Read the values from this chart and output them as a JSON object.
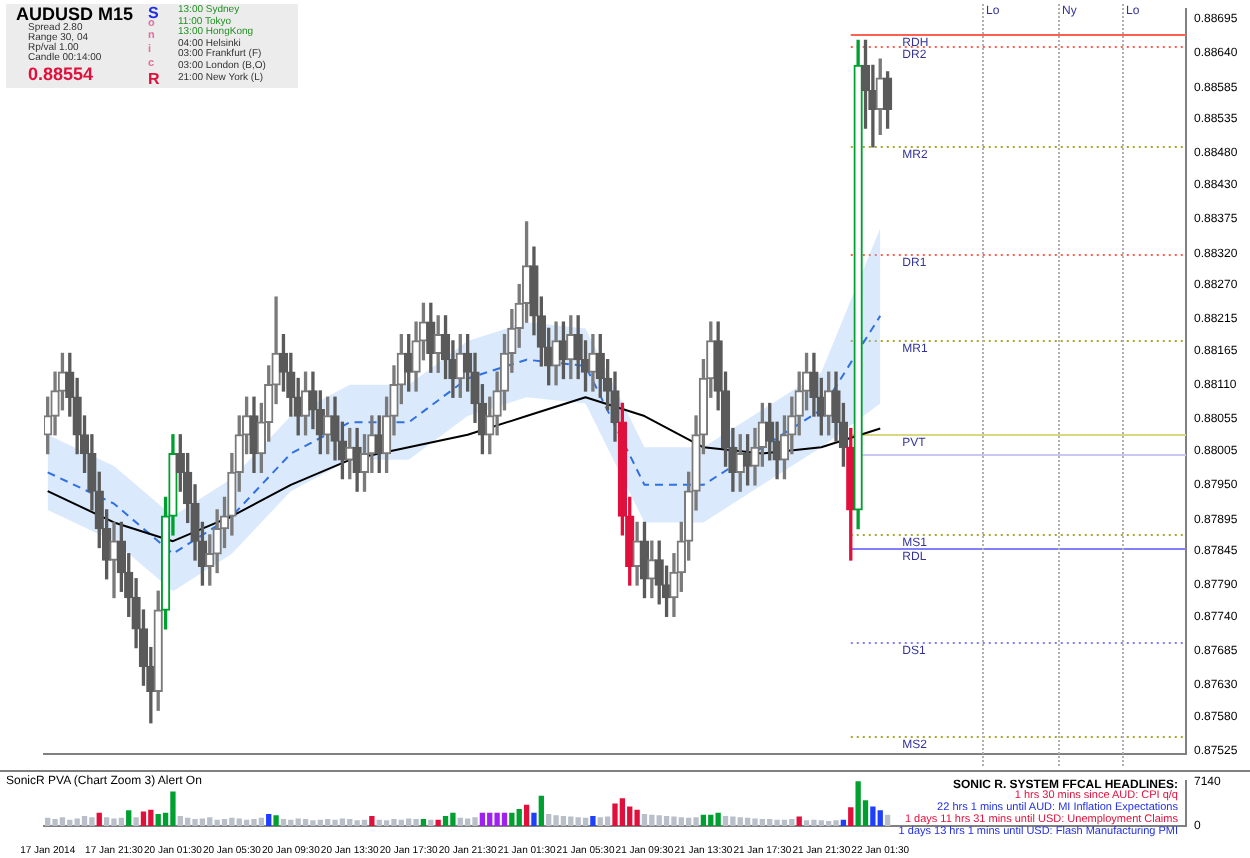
{
  "chart_data": [
    {
      "type": "candlestick",
      "title": "AUDUSD  M15",
      "categories": [
        "17 Jan 2014",
        null,
        null,
        null,
        null,
        null,
        null,
        null,
        null,
        "17 Jan 21:30",
        null,
        null,
        null,
        null,
        null,
        null,
        null,
        "20 Jan 01:30",
        null,
        null,
        null,
        null,
        null,
        null,
        null,
        "20 Jan 05:30",
        null,
        null,
        null,
        null,
        null,
        null,
        null,
        "20 Jan 09:30",
        null,
        null,
        null,
        null,
        null,
        null,
        null,
        "20 Jan 13:30",
        null,
        null,
        null,
        null,
        null,
        null,
        null,
        "20 Jan 17:30",
        null,
        null,
        null,
        null,
        null,
        null,
        null,
        "20 Jan 21:30",
        null,
        null,
        null,
        null,
        null,
        null,
        null,
        "21 Jan 01:30",
        null,
        null,
        null,
        null,
        null,
        null,
        null,
        "21 Jan 05:30",
        null,
        null,
        null,
        null,
        null,
        null,
        null,
        "21 Jan 09:30",
        null,
        null,
        null,
        null,
        null,
        null,
        null,
        "21 Jan 13:30",
        null,
        null,
        null,
        null,
        null,
        null,
        null,
        "21 Jan 17:30",
        null,
        null,
        null,
        null,
        null,
        null,
        null,
        "21 Jan 21:30",
        null,
        null,
        null,
        null,
        null,
        null,
        null,
        "22 Jan 01:30",
        null,
        null,
        null,
        null,
        null,
        null,
        null,
        null,
        null,
        null,
        null,
        null,
        null,
        null,
        null,
        null,
        null,
        null,
        null,
        null,
        null,
        null,
        null,
        null,
        null,
        null,
        null,
        null,
        null,
        null,
        null,
        null,
        null,
        null,
        null,
        null,
        null,
        null,
        null,
        null,
        null
      ],
      "ohlc": [
        [
          0.8803,
          0.8809,
          0.88,
          0.8806
        ],
        [
          0.8806,
          0.8813,
          0.8803,
          0.881
        ],
        [
          0.881,
          0.8816,
          0.8807,
          0.8813
        ],
        [
          0.8813,
          0.8816,
          0.8806,
          0.8809
        ],
        [
          0.8809,
          0.8812,
          0.88,
          0.8803
        ],
        [
          0.8803,
          0.8806,
          0.8797,
          0.88
        ],
        [
          0.88,
          0.8803,
          0.8791,
          0.8794
        ],
        [
          0.8794,
          0.8797,
          0.8785,
          0.8788
        ],
        [
          0.8788,
          0.8791,
          0.878,
          0.8783
        ],
        [
          0.8783,
          0.8789,
          0.8777,
          0.8786
        ],
        [
          0.8786,
          0.8789,
          0.8778,
          0.8781
        ],
        [
          0.8781,
          0.8784,
          0.8774,
          0.8777
        ],
        [
          0.8777,
          0.878,
          0.8769,
          0.8772
        ],
        [
          0.8772,
          0.8775,
          0.8763,
          0.8766
        ],
        [
          0.8766,
          0.8769,
          0.8757,
          0.8762
        ],
        [
          0.8762,
          0.8778,
          0.8759,
          0.8775
        ],
        [
          0.8775,
          0.8793,
          0.8772,
          0.879
        ],
        [
          0.879,
          0.8803,
          0.8787,
          0.88
        ],
        [
          0.88,
          0.8803,
          0.8794,
          0.8797
        ],
        [
          0.8797,
          0.88,
          0.8789,
          0.8792
        ],
        [
          0.8792,
          0.8795,
          0.8783,
          0.8786
        ],
        [
          0.8786,
          0.8789,
          0.8779,
          0.8782
        ],
        [
          0.8782,
          0.8787,
          0.8779,
          0.8784
        ],
        [
          0.8784,
          0.8791,
          0.8781,
          0.8788
        ],
        [
          0.8788,
          0.8793,
          0.8785,
          0.879
        ],
        [
          0.879,
          0.88,
          0.8787,
          0.8797
        ],
        [
          0.8797,
          0.8806,
          0.8794,
          0.8803
        ],
        [
          0.8803,
          0.8809,
          0.88,
          0.8806
        ],
        [
          0.8806,
          0.8809,
          0.8797,
          0.88
        ],
        [
          0.88,
          0.8808,
          0.8797,
          0.8805
        ],
        [
          0.8805,
          0.8814,
          0.8802,
          0.8811
        ],
        [
          0.8811,
          0.8825,
          0.8808,
          0.8816
        ],
        [
          0.8816,
          0.8819,
          0.881,
          0.8813
        ],
        [
          0.8813,
          0.8816,
          0.8806,
          0.8809
        ],
        [
          0.8809,
          0.8812,
          0.8803,
          0.8806
        ],
        [
          0.8806,
          0.8813,
          0.8803,
          0.881
        ],
        [
          0.881,
          0.8813,
          0.8804,
          0.8807
        ],
        [
          0.8807,
          0.881,
          0.88,
          0.8803
        ],
        [
          0.8803,
          0.8809,
          0.88,
          0.8806
        ],
        [
          0.8806,
          0.8809,
          0.8799,
          0.8802
        ],
        [
          0.8802,
          0.8805,
          0.8796,
          0.8799
        ],
        [
          0.8799,
          0.8804,
          0.8796,
          0.8801
        ],
        [
          0.8801,
          0.8804,
          0.8794,
          0.8797
        ],
        [
          0.8797,
          0.8803,
          0.8794,
          0.88
        ],
        [
          0.88,
          0.8806,
          0.8797,
          0.8803
        ],
        [
          0.8803,
          0.8806,
          0.8797,
          0.88
        ],
        [
          0.88,
          0.8809,
          0.8797,
          0.8806
        ],
        [
          0.8806,
          0.8814,
          0.8803,
          0.8811
        ],
        [
          0.8811,
          0.8819,
          0.8808,
          0.8816
        ],
        [
          0.8816,
          0.8819,
          0.881,
          0.8813
        ],
        [
          0.8813,
          0.8821,
          0.881,
          0.8818
        ],
        [
          0.8818,
          0.8824,
          0.8815,
          0.8821
        ],
        [
          0.8821,
          0.8824,
          0.8813,
          0.8816
        ],
        [
          0.8816,
          0.8822,
          0.8813,
          0.8819
        ],
        [
          0.8819,
          0.8822,
          0.8812,
          0.8815
        ],
        [
          0.8815,
          0.8818,
          0.8809,
          0.8812
        ],
        [
          0.8812,
          0.8819,
          0.8809,
          0.8816
        ],
        [
          0.8816,
          0.8819,
          0.881,
          0.8813
        ],
        [
          0.8813,
          0.8816,
          0.8805,
          0.8808
        ],
        [
          0.8808,
          0.8811,
          0.88,
          0.8803
        ],
        [
          0.8803,
          0.8809,
          0.88,
          0.8806
        ],
        [
          0.8806,
          0.8813,
          0.8803,
          0.881
        ],
        [
          0.881,
          0.8819,
          0.8807,
          0.8816
        ],
        [
          0.8816,
          0.8823,
          0.8813,
          0.882
        ],
        [
          0.882,
          0.8827,
          0.8817,
          0.8824
        ],
        [
          0.8824,
          0.8837,
          0.8821,
          0.883
        ],
        [
          0.883,
          0.8833,
          0.8819,
          0.8822
        ],
        [
          0.8822,
          0.8825,
          0.8814,
          0.8817
        ],
        [
          0.8817,
          0.882,
          0.8811,
          0.8814
        ],
        [
          0.8814,
          0.8821,
          0.8811,
          0.8818
        ],
        [
          0.8818,
          0.8821,
          0.8812,
          0.8815
        ],
        [
          0.8815,
          0.8822,
          0.8812,
          0.8819
        ],
        [
          0.8819,
          0.8822,
          0.8812,
          0.8815
        ],
        [
          0.8815,
          0.8818,
          0.881,
          0.8813
        ],
        [
          0.8813,
          0.8819,
          0.881,
          0.8816
        ],
        [
          0.8816,
          0.8819,
          0.8809,
          0.8812
        ],
        [
          0.8812,
          0.8815,
          0.8807,
          0.881
        ],
        [
          0.881,
          0.8813,
          0.8802,
          0.8805
        ],
        [
          0.8805,
          0.8808,
          0.8787,
          0.879
        ],
        [
          0.879,
          0.8793,
          0.8779,
          0.8782
        ],
        [
          0.8782,
          0.8789,
          0.8779,
          0.8786
        ],
        [
          0.8786,
          0.8789,
          0.8777,
          0.878
        ],
        [
          0.878,
          0.8786,
          0.8777,
          0.8783
        ],
        [
          0.8783,
          0.8786,
          0.8776,
          0.8779
        ],
        [
          0.8779,
          0.8782,
          0.8774,
          0.8777
        ],
        [
          0.8777,
          0.8784,
          0.8774,
          0.8781
        ],
        [
          0.8781,
          0.8789,
          0.8778,
          0.8786
        ],
        [
          0.8786,
          0.8797,
          0.8783,
          0.8794
        ],
        [
          0.8794,
          0.8806,
          0.8791,
          0.8803
        ],
        [
          0.8803,
          0.8815,
          0.88,
          0.8812
        ],
        [
          0.8812,
          0.8821,
          0.8809,
          0.8818
        ],
        [
          0.8818,
          0.8821,
          0.8807,
          0.881
        ],
        [
          0.881,
          0.8813,
          0.8798,
          0.8801
        ],
        [
          0.8801,
          0.8804,
          0.8794,
          0.8797
        ],
        [
          0.8797,
          0.8803,
          0.8794,
          0.88
        ],
        [
          0.88,
          0.8803,
          0.8795,
          0.8798
        ],
        [
          0.8798,
          0.8804,
          0.8795,
          0.8801
        ],
        [
          0.8801,
          0.8808,
          0.8798,
          0.8805
        ],
        [
          0.8805,
          0.8808,
          0.8799,
          0.8802
        ],
        [
          0.8802,
          0.8805,
          0.8796,
          0.8799
        ],
        [
          0.8799,
          0.8806,
          0.8796,
          0.8803
        ],
        [
          0.8803,
          0.8809,
          0.88,
          0.8806
        ],
        [
          0.8806,
          0.8813,
          0.8803,
          0.881
        ],
        [
          0.881,
          0.8816,
          0.8807,
          0.8813
        ],
        [
          0.8813,
          0.8816,
          0.8806,
          0.8809
        ],
        [
          0.8809,
          0.8812,
          0.8803,
          0.8806
        ],
        [
          0.8806,
          0.8813,
          0.8803,
          0.881
        ],
        [
          0.881,
          0.8813,
          0.8802,
          0.8805
        ],
        [
          0.8805,
          0.8808,
          0.8798,
          0.8801
        ],
        [
          0.8801,
          0.8804,
          0.8783,
          0.8791
        ],
        [
          0.8791,
          0.8866,
          0.8788,
          0.8862
        ],
        [
          0.8862,
          0.8866,
          0.8852,
          0.8858
        ],
        [
          0.8858,
          0.8862,
          0.8849,
          0.8855
        ],
        [
          0.8855,
          0.8863,
          0.8851,
          0.886
        ],
        [
          0.886,
          0.8861,
          0.8852,
          0.8855
        ],
        null,
        null,
        null,
        null,
        null,
        null,
        null,
        null,
        null,
        null,
        null,
        null,
        null,
        null,
        null,
        null,
        null,
        null,
        null,
        null,
        null,
        null,
        null,
        null,
        null,
        null,
        null,
        null,
        null,
        null,
        null,
        null,
        null,
        null,
        null,
        null,
        null,
        null,
        null,
        null
      ],
      "colors": [
        "#7a7a7a",
        "#7a7a7a",
        "#7a7a7a",
        "#5a5a5a",
        "#5a5a5a",
        "#5a5a5a",
        "#5a5a5a",
        "#5a5a5a",
        "#5a5a5a",
        "#7a7a7a",
        "#5a5a5a",
        "#5a5a5a",
        "#5a5a5a",
        "#5a5a5a",
        "#5a5a5a",
        "#7a7a7a",
        "#00a030",
        "#00a030",
        "#5a5a5a",
        "#5a5a5a",
        "#5a5a5a",
        "#5a5a5a",
        "#7a7a7a",
        "#7a7a7a",
        "#7a7a7a",
        "#7a7a7a",
        "#7a7a7a",
        "#7a7a7a",
        "#5a5a5a",
        "#7a7a7a",
        "#7a7a7a",
        "#7a7a7a",
        "#5a5a5a",
        "#5a5a5a",
        "#5a5a5a",
        "#7a7a7a",
        "#5a5a5a",
        "#5a5a5a",
        "#7a7a7a",
        "#5a5a5a",
        "#5a5a5a",
        "#7a7a7a",
        "#5a5a5a",
        "#7a7a7a",
        "#7a7a7a",
        "#5a5a5a",
        "#7a7a7a",
        "#7a7a7a",
        "#7a7a7a",
        "#5a5a5a",
        "#7a7a7a",
        "#7a7a7a",
        "#5a5a5a",
        "#7a7a7a",
        "#5a5a5a",
        "#5a5a5a",
        "#7a7a7a",
        "#5a5a5a",
        "#5a5a5a",
        "#5a5a5a",
        "#7a7a7a",
        "#7a7a7a",
        "#7a7a7a",
        "#7a7a7a",
        "#7a7a7a",
        "#7a7a7a",
        "#5a5a5a",
        "#5a5a5a",
        "#5a5a5a",
        "#7a7a7a",
        "#5a5a5a",
        "#7a7a7a",
        "#5a5a5a",
        "#5a5a5a",
        "#7a7a7a",
        "#5a5a5a",
        "#5a5a5a",
        "#5a5a5a",
        "#e0103c",
        "#e0103c",
        "#7a7a7a",
        "#5a5a5a",
        "#7a7a7a",
        "#5a5a5a",
        "#5a5a5a",
        "#7a7a7a",
        "#7a7a7a",
        "#7a7a7a",
        "#7a7a7a",
        "#7a7a7a",
        "#7a7a7a",
        "#5a5a5a",
        "#5a5a5a",
        "#5a5a5a",
        "#7a7a7a",
        "#5a5a5a",
        "#7a7a7a",
        "#7a7a7a",
        "#5a5a5a",
        "#5a5a5a",
        "#7a7a7a",
        "#7a7a7a",
        "#7a7a7a",
        "#7a7a7a",
        "#5a5a5a",
        "#5a5a5a",
        "#7a7a7a",
        "#5a5a5a",
        "#5a5a5a",
        "#e0103c",
        "#00a030",
        "#5a5a5a",
        "#5a5a5a",
        "#7a7a7a",
        "#5a5a5a",
        null,
        null,
        null,
        null,
        null,
        null,
        null,
        null,
        null,
        null,
        null,
        null,
        null,
        null,
        null,
        null,
        null,
        null,
        null,
        null,
        null,
        null,
        null,
        null,
        null,
        null,
        null,
        null,
        null,
        null,
        null,
        null,
        null,
        null,
        null,
        null,
        null,
        null,
        null,
        null
      ],
      "series": [
        {
          "type": "line",
          "color": "#000000",
          "x": [
            "17 Jan 2014",
            "17 Jan 21:30",
            "20 Jan 01:30",
            "20 Jan 05:30",
            "20 Jan 09:30",
            "20 Jan 13:30",
            "20 Jan 17:30",
            "20 Jan 21:30",
            "21 Jan 01:30",
            "21 Jan 05:30",
            "21 Jan 09:30",
            "21 Jan 13:30",
            "21 Jan 17:30",
            "21 Jan 21:30",
            "22 Jan 01:30"
          ],
          "values": [
            0.8794,
            0.8789,
            0.8786,
            0.879,
            0.8795,
            0.8799,
            0.8801,
            0.8803,
            0.8806,
            0.8809,
            0.8806,
            0.8801,
            0.88,
            0.8801,
            0.8804
          ]
        },
        {
          "type": "line",
          "color": "#3070e0",
          "line_style": "dashed",
          "x": [
            "17 Jan 2014",
            "17 Jan 21:30",
            "20 Jan 01:30",
            "20 Jan 05:30",
            "20 Jan 09:30",
            "20 Jan 13:30",
            "20 Jan 17:30",
            "20 Jan 21:30",
            "21 Jan 01:30",
            "21 Jan 05:30",
            "21 Jan 09:30",
            "21 Jan 13:30",
            "21 Jan 17:30",
            "21 Jan 21:30",
            "22 Jan 01:30"
          ],
          "values": [
            0.8797,
            0.8792,
            0.8784,
            0.879,
            0.88,
            0.8805,
            0.8805,
            0.8812,
            0.8815,
            0.8814,
            0.8795,
            0.8795,
            0.8801,
            0.8807,
            0.8822
          ],
          "lower": [
            0.8791,
            0.8786,
            0.8778,
            0.8784,
            0.8794,
            0.8799,
            0.8799,
            0.8806,
            0.8809,
            0.8808,
            0.8789,
            0.8789,
            0.8795,
            0.8801,
            0.8808
          ],
          "upper": [
            0.8803,
            0.8798,
            0.879,
            0.8796,
            0.8806,
            0.8811,
            0.8811,
            0.8818,
            0.8821,
            0.882,
            0.8801,
            0.8801,
            0.8807,
            0.8813,
            0.8836
          ]
        }
      ],
      "ylim": [
        0.8752,
        0.8871
      ],
      "yticks": [
        0.88695,
        {
          "value": 0.8864,
          "label": "0.88640"
        },
        0.88585,
        0.88535,
        {
          "value": 0.8848,
          "label": "0.88480"
        },
        {
          "value": 0.8843,
          "label": "0.88430"
        },
        0.88375,
        {
          "value": 0.8832,
          "label": "0.88320"
        },
        {
          "value": 0.8827,
          "label": "0.88270"
        },
        0.88215,
        0.88165,
        {
          "value": 0.8811,
          "label": "0.88110"
        },
        0.88055,
        0.88005,
        {
          "value": 0.8795,
          "label": "0.87950"
        },
        0.87895,
        0.87845,
        {
          "value": 0.8779,
          "label": "0.87790"
        },
        {
          "value": 0.8774,
          "label": "0.87740"
        },
        0.87685,
        {
          "value": 0.8763,
          "label": "0.87630"
        },
        {
          "value": 0.8758,
          "label": "0.87580"
        },
        0.87525
      ],
      "tick_labels": "y",
      "ref_lines": [
        {
          "axis": "y",
          "value": 0.8867,
          "label": "RDH",
          "color": "#ff6050",
          "line_style": "solid"
        },
        {
          "axis": "y",
          "value": 0.8865,
          "label": "DR2",
          "color": "#ff6050",
          "line_style": "dotted"
        },
        {
          "axis": "y",
          "value": 0.8849,
          "label": "MR2",
          "color": "#a8a830",
          "line_style": "dotted"
        },
        {
          "axis": "y",
          "value": 0.8832,
          "label": "DR1",
          "color": "#ff6050",
          "line_style": "dotted"
        },
        {
          "axis": "y",
          "value": 0.8818,
          "label": "MR1",
          "color": "#a8a830",
          "line_style": "dotted"
        },
        {
          "axis": "y",
          "value": 0.8803,
          "label": "PVT",
          "color": "#d8d880",
          "line_style": "solid"
        },
        {
          "axis": "y",
          "value": 0.88,
          "color": "#c8c8f4",
          "line_style": "solid"
        },
        {
          "axis": "y",
          "value": 0.8787,
          "label": "MS1",
          "color": "#a8a830",
          "line_style": "dotted"
        },
        {
          "axis": "y",
          "value": 0.8785,
          "label": "RDL",
          "color": "#8080ff",
          "line_style": "solid"
        },
        {
          "axis": "y",
          "value": 0.877,
          "label": "DS1",
          "color": "#8080ff",
          "line_style": "dotted"
        },
        {
          "axis": "y",
          "value": 0.8755,
          "label": "MS2",
          "color": "#a8a830",
          "line_style": "dotted"
        }
      ],
      "annotations": [
        "Spread  2.80",
        "Range  30, 04",
        "Rp/val  1.00",
        "Candle  00:14:00",
        "0.88554",
        "SonicR",
        "13:00 Sydney",
        "11:00 Tokyo",
        "13:00 HongKong",
        "04:00 Helsinki",
        "03:00 Frankfurt (F)",
        "03:00 London (B,O)",
        "21:00 New York (L)",
        "Lo",
        "Ny",
        "Lo"
      ]
    },
    {
      "type": "bar",
      "title": "SonicR PVA (Chart Zoom 3)  Alert On",
      "categories": [
        "17 Jan 2014",
        null,
        null,
        null,
        null,
        null,
        null,
        null,
        null,
        "17 Jan 21:30",
        null,
        null,
        null,
        null,
        null,
        null,
        null,
        "20 Jan 01:30",
        null,
        null,
        null,
        null,
        null,
        null,
        null,
        "20 Jan 05:30",
        null,
        null,
        null,
        null,
        null,
        null,
        null,
        "20 Jan 09:30",
        null,
        null,
        null,
        null,
        null,
        null,
        null,
        "20 Jan 13:30",
        null,
        null,
        null,
        null,
        null,
        null,
        null,
        "20 Jan 17:30",
        null,
        null,
        null,
        null,
        null,
        null,
        null,
        "20 Jan 21:30",
        null,
        null,
        null,
        null,
        null,
        null,
        null,
        "21 Jan 01:30",
        null,
        null,
        null,
        null,
        null,
        null,
        null,
        "21 Jan 05:30",
        null,
        null,
        null,
        null,
        null,
        null,
        null,
        "21 Jan 09:30",
        null,
        null,
        null,
        null,
        null,
        null,
        null,
        "21 Jan 13:30",
        null,
        null,
        null,
        null,
        null,
        null,
        null,
        "21 Jan 17:30",
        null,
        null,
        null,
        null,
        null,
        null,
        null,
        "21 Jan 21:30",
        null,
        null,
        null,
        null,
        null,
        null,
        null,
        "22 Jan 01:30",
        null,
        null,
        null,
        null,
        null,
        null,
        null,
        null,
        null,
        null,
        null,
        null,
        null,
        null,
        null,
        null,
        null,
        null,
        null,
        null,
        null,
        null,
        null,
        null,
        null,
        null,
        null,
        null,
        null,
        null,
        null,
        null,
        null,
        null,
        null,
        null,
        null,
        null,
        null,
        null,
        null
      ],
      "values": [
        1200,
        1000,
        1300,
        900,
        1100,
        1500,
        1300,
        2000,
        1300,
        1100,
        1200,
        2400,
        1300,
        2200,
        2500,
        1800,
        2000,
        5400,
        1500,
        1200,
        1000,
        1100,
        1300,
        900,
        1000,
        1200,
        1100,
        900,
        1000,
        1200,
        1800,
        1600,
        1000,
        900,
        1100,
        1000,
        800,
        900,
        1000,
        900,
        1100,
        1000,
        800,
        900,
        1500,
        900,
        800,
        1000,
        900,
        1100,
        1000,
        1000,
        900,
        900,
        1500,
        2000,
        1200,
        1100,
        1300,
        2000,
        2000,
        2000,
        2000,
        2000,
        2600,
        3300,
        2000,
        4700,
        1800,
        1600,
        1500,
        1400,
        1300,
        1200,
        1500,
        1300,
        1400,
        3500,
        4300,
        3000,
        2500,
        1800,
        1700,
        1600,
        1500,
        1400,
        1300,
        1200,
        1300,
        1700,
        1700,
        2000,
        1500,
        1400,
        1300,
        1200,
        1100,
        1000,
        1000,
        900,
        900,
        1000,
        1400,
        800,
        900,
        800,
        700,
        800,
        900,
        2900,
        7140,
        4000,
        3000,
        2400,
        1700,
        null,
        null,
        null,
        null,
        null,
        null,
        null,
        null,
        null,
        null,
        null,
        null,
        null,
        null,
        null,
        null,
        null,
        null,
        null,
        null,
        null,
        null,
        null,
        null,
        null,
        null,
        null,
        null,
        null,
        null,
        null,
        null,
        null,
        null,
        null,
        null,
        null,
        null,
        null,
        null
      ],
      "colors": [
        "#b8bfc9",
        "#b8bfc9",
        "#b8bfc9",
        "#b8bfc9",
        "#b8bfc9",
        "#b8bfc9",
        "#b8bfc9",
        "#e0103c",
        "#b8bfc9",
        "#b8bfc9",
        "#b8bfc9",
        "#00a030",
        "#b8bfc9",
        "#e0103c",
        "#e0103c",
        "#00a030",
        "#00a030",
        "#00a030",
        "#b8bfc9",
        "#b8bfc9",
        "#b8bfc9",
        "#b8bfc9",
        "#b8bfc9",
        "#b8bfc9",
        "#b8bfc9",
        "#b8bfc9",
        "#b8bfc9",
        "#b8bfc9",
        "#b8bfc9",
        "#b8bfc9",
        "#1f3fff",
        "#00a030",
        "#b8bfc9",
        "#b8bfc9",
        "#b8bfc9",
        "#b8bfc9",
        "#b8bfc9",
        "#b8bfc9",
        "#b8bfc9",
        "#b8bfc9",
        "#b8bfc9",
        "#b8bfc9",
        "#b8bfc9",
        "#b8bfc9",
        "#e0103c",
        "#b8bfc9",
        "#b8bfc9",
        "#b8bfc9",
        "#b8bfc9",
        "#b8bfc9",
        "#b8bfc9",
        "#00a030",
        "#b8bfc9",
        "#e0103c",
        "#00a030",
        "#00a030",
        "#b8bfc9",
        "#b8bfc9",
        "#b8bfc9",
        "#a020f0",
        "#a020f0",
        "#a020f0",
        "#a020f0",
        "#00a030",
        "#00a030",
        "#e0103c",
        "#1f3fff",
        "#00a030",
        "#b8bfc9",
        "#b8bfc9",
        "#b8bfc9",
        "#b8bfc9",
        "#b8bfc9",
        "#b8bfc9",
        "#1f3fff",
        "#b8bfc9",
        "#b8bfc9",
        "#e0103c",
        "#e0103c",
        "#e0103c",
        "#e0103c",
        "#b8bfc9",
        "#b8bfc9",
        "#b8bfc9",
        "#b8bfc9",
        "#b8bfc9",
        "#b8bfc9",
        "#b8bfc9",
        "#b8bfc9",
        "#00a030",
        "#00a030",
        "#00a030",
        "#b8bfc9",
        "#b8bfc9",
        "#b8bfc9",
        "#b8bfc9",
        "#b8bfc9",
        "#b8bfc9",
        "#b8bfc9",
        "#b8bfc9",
        "#b8bfc9",
        "#b8bfc9",
        "#e0103c",
        "#b8bfc9",
        "#b8bfc9",
        "#b8bfc9",
        "#b8bfc9",
        "#b8bfc9",
        "#1f3fff",
        "#e0103c",
        "#00a030",
        "#00a030",
        "#1f3fff",
        "#1f3fff",
        "#b8bfc9",
        null,
        null,
        null,
        null,
        null,
        null,
        null,
        null,
        null,
        null,
        null,
        null,
        null,
        null,
        null,
        null,
        null,
        null,
        null,
        null,
        null,
        null,
        null,
        null,
        null,
        null,
        null,
        null,
        null,
        null,
        null,
        null,
        null,
        null,
        null,
        null,
        null,
        null,
        null,
        null
      ],
      "ylim": [
        0,
        7140
      ],
      "yticks": [
        0,
        7140
      ],
      "annotations": [
        "SONIC R. SYSTEM FFCAL HEADLINES:",
        "1 hrs 30 mins since AUD: CPI q/q",
        "22 hrs 1 mins until AUD: MI Inflation Expectations",
        "1 days 11 hrs 31 mins until USD: Unemployment Claims",
        "1 days 13 hrs 1 mins until USD: Flash Manufacturing PMI"
      ]
    }
  ]
}
